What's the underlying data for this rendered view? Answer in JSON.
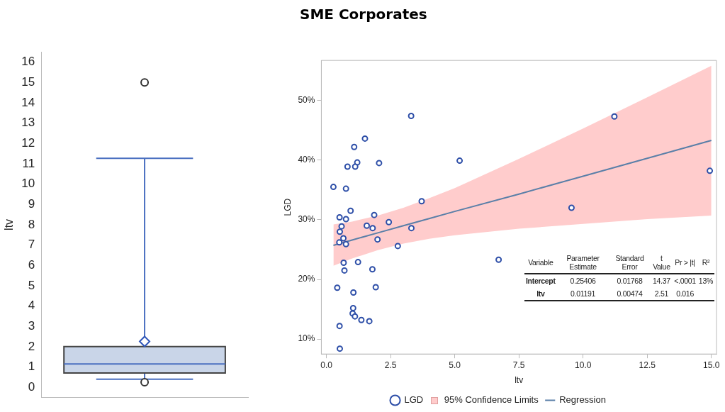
{
  "chart_data": [
    {
      "type": "box",
      "ylabel": "ltv",
      "categories": [
        null
      ],
      "ylim": [
        -0.5,
        16.5
      ],
      "yticks": [
        0,
        1,
        2,
        3,
        4,
        5,
        6,
        7,
        8,
        9,
        10,
        11,
        12,
        13,
        14,
        15,
        16
      ],
      "grid": false,
      "legend": false,
      "color": "#c9d5e8",
      "boxes": [
        {
          "low": 0.4,
          "q1": 0.71,
          "median": 1.15,
          "q3": 2.01,
          "high": 11.27,
          "mean": 2.26,
          "outliers": [
            15.0,
            0.25
          ]
        }
      ]
    },
    {
      "type": "scatter",
      "title": "SME Corporates",
      "xlabel": "ltv",
      "ylabel": "LGD",
      "xlim": [
        -0.2,
        15.2
      ],
      "ylim": [
        7.5,
        56.7
      ],
      "grid": false,
      "legend": "bottom",
      "xticks": [
        {
          "value": 0,
          "label": "0.0"
        },
        {
          "value": 2.5,
          "label": "2.5"
        },
        {
          "value": 5,
          "label": "5.0"
        },
        {
          "value": 7.5,
          "label": "7.5"
        },
        {
          "value": 10,
          "label": "10.0"
        },
        {
          "value": 12.5,
          "label": "12.5"
        },
        {
          "value": 15,
          "label": "15.0"
        }
      ],
      "yticks": [
        {
          "value": 10,
          "label": "10%"
        },
        {
          "value": 20,
          "label": "20%"
        },
        {
          "value": 30,
          "label": "30%"
        },
        {
          "value": 40,
          "label": "40%"
        },
        {
          "value": 50,
          "label": "50%"
        }
      ],
      "series": [
        {
          "name": "LGD",
          "type": "scatter",
          "marker": "circle",
          "color": "#2e4fa8",
          "x": [
            3.3,
            1.5,
            1.08,
            1.2,
            0.82,
            1.12,
            2.05,
            5.19,
            0.27,
            0.76,
            3.71,
            0.94,
            0.51,
            0.76,
            1.86,
            0.59,
            1.57,
            1.8,
            2.43,
            3.31,
            0.52,
            0.66,
            0.5,
            0.76,
            1.99,
            2.78,
            0.67,
            1.23,
            0.7,
            1.79,
            0.42,
            1.92,
            1.05,
            1.04,
            1.02,
            1.11,
            1.36,
            1.67,
            0.51,
            0.52,
            6.71,
            11.22,
            9.55,
            14.94
          ],
          "values": [
            47.4,
            43.6,
            42.2,
            39.6,
            38.9,
            38.9,
            39.5,
            39.9,
            35.5,
            35.2,
            33.1,
            31.5,
            30.4,
            30.1,
            30.8,
            28.9,
            29.0,
            28.6,
            29.6,
            28.6,
            28.0,
            26.9,
            26.2,
            25.9,
            26.7,
            25.6,
            22.8,
            22.9,
            21.5,
            21.7,
            18.6,
            18.7,
            17.8,
            15.2,
            14.3,
            13.8,
            13.2,
            13.0,
            12.2,
            8.4,
            23.3,
            47.3,
            32.0,
            38.2
          ]
        },
        {
          "name": "Regression",
          "type": "line",
          "color": "#5a7fa8",
          "x": [
            0.27,
            1,
            2,
            3,
            4,
            5,
            7.5,
            10,
            12.5,
            15
          ],
          "values": [
            25.7,
            26.6,
            27.8,
            29.0,
            30.2,
            31.4,
            34.3,
            37.3,
            40.3,
            43.3
          ],
          "lower": [
            22.3,
            23.5,
            24.9,
            26.0,
            26.8,
            27.4,
            28.5,
            29.3,
            30.1,
            30.7
          ],
          "upper": [
            29.2,
            29.7,
            30.7,
            32.0,
            33.6,
            35.3,
            40.2,
            45.3,
            50.5,
            55.8
          ]
        }
      ],
      "annotations": [
        "95% Confidence Limits",
        "Variable",
        "Parameter Estimate",
        "Standard Error",
        "t Value",
        "Pr > |t|",
        "R²",
        "Intercept",
        "0.25406",
        "0.01768",
        "14.37",
        "<.0001",
        "13%",
        "ltv",
        "0.01191",
        "0.00474",
        "2.51",
        "0.016"
      ]
    }
  ]
}
